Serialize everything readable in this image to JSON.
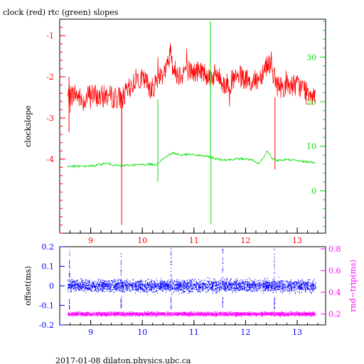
{
  "title": "clock (red) rtc (green) slopes",
  "footer": "2017-01-08 dilaton.physics.ubc.ca",
  "colors": {
    "red": "#ff0000",
    "green": "#00e000",
    "blue": "#0000ff",
    "magenta": "#ff00ff",
    "axis": "#000000"
  },
  "chart_data": [
    {
      "type": "line",
      "title": "clock (red) rtc (green) slopes",
      "ylabel": "clockslope",
      "xlim": [
        8.4,
        13.55
      ],
      "ylim": [
        -5.8,
        -0.6
      ],
      "y2lim": [
        -9.5,
        38.5
      ],
      "xticks": [
        9,
        10,
        11,
        12,
        13
      ],
      "yticks": [
        -1,
        -2,
        -3,
        -4
      ],
      "y2ticks": [
        0,
        10,
        20,
        30
      ],
      "series": [
        {
          "name": "clock",
          "axis": "left",
          "color": "#ff0000",
          "x": [
            8.55,
            8.7,
            8.85,
            9.0,
            9.15,
            9.3,
            9.45,
            9.58,
            9.6,
            9.62,
            9.75,
            9.9,
            10.05,
            10.2,
            10.3,
            10.4,
            10.5,
            10.55,
            10.6,
            10.7,
            10.85,
            11.0,
            11.15,
            11.3,
            11.45,
            11.6,
            11.75,
            11.9,
            12.05,
            12.2,
            12.3,
            12.4,
            12.5,
            12.55,
            12.6,
            12.7,
            12.85,
            13.0,
            13.15,
            13.35
          ],
          "y": [
            -2.5,
            -2.4,
            -2.6,
            -2.4,
            -2.5,
            -2.45,
            -2.5,
            -2.5,
            -4.2,
            -2.5,
            -2.3,
            -2.0,
            -2.1,
            -2.3,
            -2.0,
            -1.9,
            -1.7,
            -1.25,
            -1.8,
            -1.95,
            -1.8,
            -1.9,
            -1.85,
            -2.0,
            -1.95,
            -2.2,
            -2.1,
            -2.0,
            -2.15,
            -2.1,
            -1.95,
            -1.7,
            -1.65,
            -2.0,
            -2.2,
            -2.25,
            -2.2,
            -2.2,
            -2.3,
            -2.4
          ]
        },
        {
          "name": "rtc",
          "axis": "right",
          "color": "#00e000",
          "x": [
            8.55,
            8.8,
            9.05,
            9.3,
            9.55,
            9.8,
            10.0,
            10.15,
            10.25,
            10.3,
            10.38,
            10.5,
            10.6,
            10.75,
            10.9,
            11.05,
            11.2,
            11.32,
            11.34,
            11.5,
            11.7,
            11.9,
            12.1,
            12.25,
            12.35,
            12.42,
            12.5,
            12.6,
            12.8,
            13.0,
            13.2,
            13.35
          ],
          "y": [
            5.5,
            5.5,
            5.6,
            6.2,
            5.6,
            5.8,
            5.9,
            6.0,
            5.8,
            2.0,
            7.0,
            8.0,
            8.5,
            8.0,
            8.2,
            8.0,
            7.8,
            38.0,
            7.5,
            7.0,
            7.0,
            7.2,
            7.0,
            6.0,
            7.5,
            9.0,
            7.5,
            6.8,
            7.0,
            6.8,
            6.5,
            6.3
          ]
        }
      ]
    },
    {
      "type": "scatter",
      "ylabel": "offset(ms)",
      "y2label": "rnd−trip(ms)",
      "xlim": [
        8.4,
        13.55
      ],
      "ylim": [
        -0.2,
        0.2
      ],
      "y2lim": [
        0.1,
        0.82
      ],
      "xticks": [
        9,
        10,
        11,
        12,
        13
      ],
      "yticks": [
        0.2,
        0.1,
        0,
        -0.1,
        -0.2
      ],
      "y2ticks": [
        0.8,
        0.6,
        0.4,
        0.2
      ],
      "series": [
        {
          "name": "offset",
          "axis": "left",
          "color": "#0000ff",
          "center": 0.0,
          "spread": 0.025,
          "x_range": [
            8.55,
            13.35
          ]
        },
        {
          "name": "rnd-trip",
          "axis": "right",
          "color": "#ff00ff",
          "center": 0.2,
          "spread": 0.015,
          "x_range": [
            8.55,
            13.35
          ]
        }
      ]
    }
  ]
}
